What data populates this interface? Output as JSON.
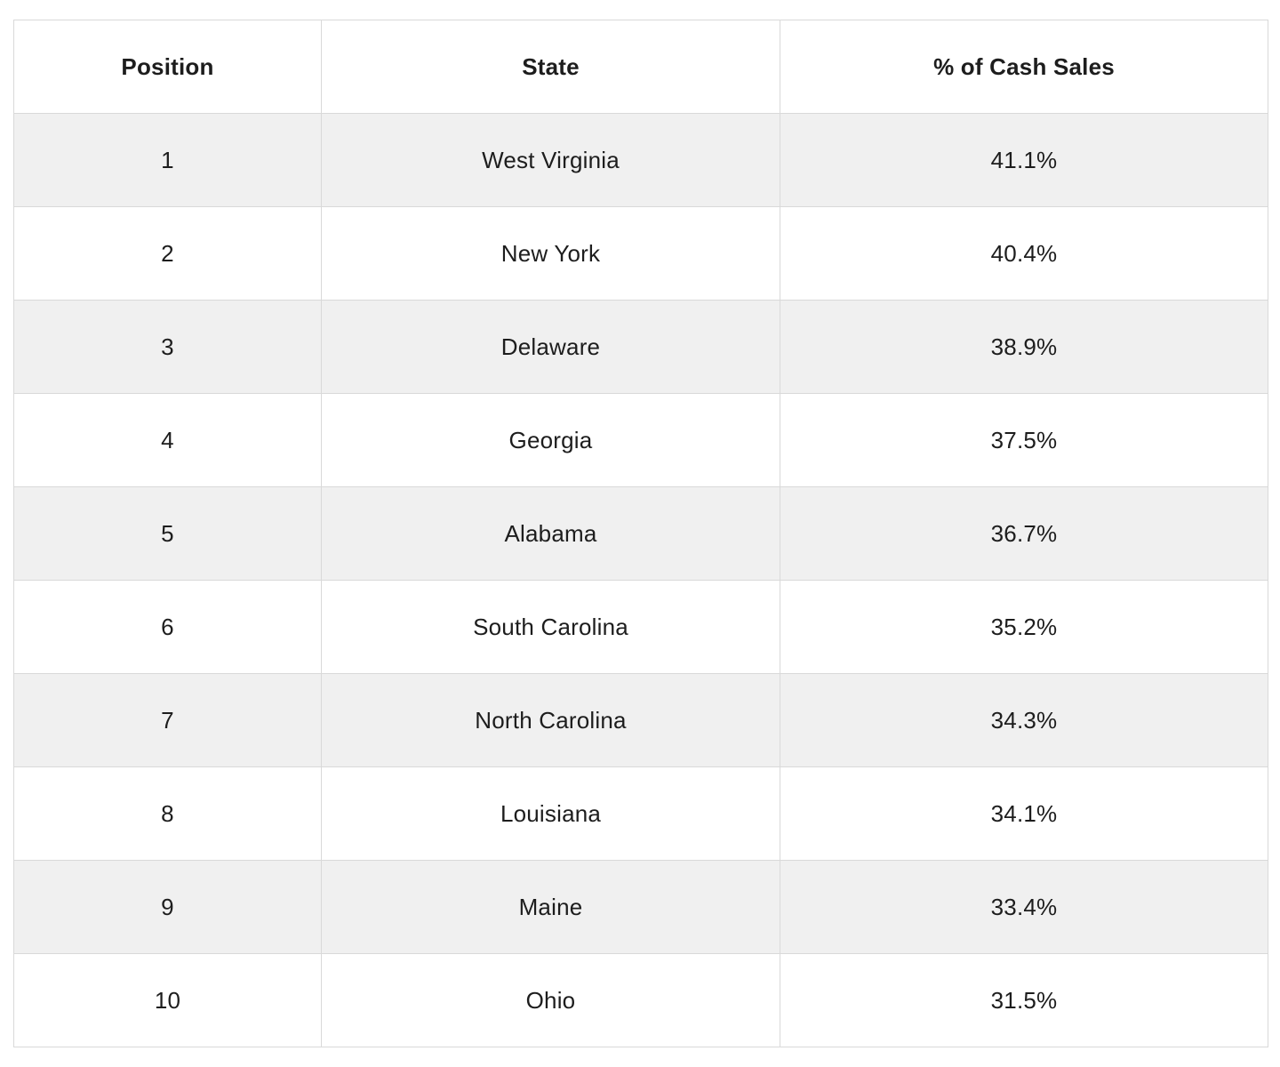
{
  "chart_data": {
    "type": "table",
    "title": "",
    "columns": [
      "Position",
      "State",
      "% of Cash Sales"
    ],
    "rows": [
      [
        1,
        "West Virginia",
        "41.1%"
      ],
      [
        2,
        "New York",
        "40.4%"
      ],
      [
        3,
        "Delaware",
        "38.9%"
      ],
      [
        4,
        "Georgia",
        "37.5%"
      ],
      [
        5,
        "Alabama",
        "36.7%"
      ],
      [
        6,
        "South Carolina",
        "35.2%"
      ],
      [
        7,
        "North Carolina",
        "34.3%"
      ],
      [
        8,
        "Louisiana",
        "34.1%"
      ],
      [
        9,
        "Maine",
        "33.4%"
      ],
      [
        10,
        "Ohio",
        "31.5%"
      ]
    ],
    "percent_values_numeric": [
      41.1,
      40.4,
      38.9,
      37.5,
      36.7,
      35.2,
      34.3,
      34.1,
      33.4,
      31.5
    ]
  },
  "table": {
    "headers": [
      "Position",
      "State",
      "% of Cash Sales"
    ],
    "rows": [
      [
        "1",
        "West Virginia",
        "41.1%"
      ],
      [
        "2",
        "New York",
        "40.4%"
      ],
      [
        "3",
        "Delaware",
        "38.9%"
      ],
      [
        "4",
        "Georgia",
        "37.5%"
      ],
      [
        "5",
        "Alabama",
        "36.7%"
      ],
      [
        "6",
        "South Carolina",
        "35.2%"
      ],
      [
        "7",
        "North Carolina",
        "34.3%"
      ],
      [
        "8",
        "Louisiana",
        "34.1%"
      ],
      [
        "9",
        "Maine",
        "33.4%"
      ],
      [
        "10",
        "Ohio",
        "31.5%"
      ]
    ]
  },
  "colors": {
    "row_stripe": "#f0f0f0",
    "border": "#d9d9d9",
    "text": "#1d1d1d",
    "background": "#ffffff"
  }
}
